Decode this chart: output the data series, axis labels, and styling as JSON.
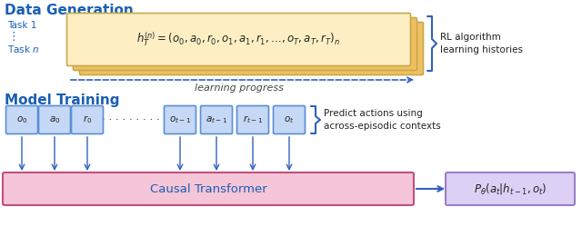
{
  "title_data_gen": "Data Generation",
  "title_model_train": "Model Training",
  "bg_color": "#ffffff",
  "title_color": "#1a5fb4",
  "task_label_color": "#1a5fb4",
  "stack_fill_color": "#f0c060",
  "stack_edge_color": "#c8a84b",
  "stack_front_fill": "#fdefc3",
  "formula_text": "$h_T^{(n)} = (o_0, a_0, r_0, o_1, a_1, r_1, \\ldots, o_T, a_T, r_T)_n$",
  "learning_progress_text": "learning progress",
  "rl_label_line1": "RL algorithm",
  "rl_label_line2": "learning histories",
  "token_box_fill": "#c5d8f5",
  "token_box_edge": "#5b8fd4",
  "transformer_fill": "#f5c5d8",
  "transformer_edge": "#c05080",
  "output_box_fill": "#ddd0f5",
  "output_box_edge": "#9b7ec8",
  "arrow_color": "#3060c0",
  "predict_line1": "Predict actions using",
  "predict_line2": "across-episodic contexts",
  "causal_text": "Causal Transformer",
  "output_formula": "$P_{\\theta}(a_t | h_{t-1}, o_t)$",
  "dots_text": "· · · · · · · · · ·"
}
